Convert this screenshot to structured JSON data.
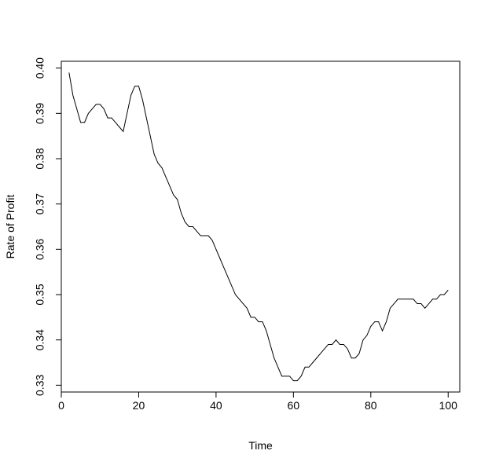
{
  "chart_data": {
    "type": "line",
    "title": "",
    "xlabel": "Time",
    "ylabel": "Rate of Profit",
    "xlim": [
      0,
      103
    ],
    "ylim": [
      0.3285,
      0.4015
    ],
    "xticks": [
      0,
      20,
      40,
      60,
      80,
      100
    ],
    "xtick_labels": [
      "0",
      "20",
      "40",
      "60",
      "80",
      "100"
    ],
    "yticks": [
      0.33,
      0.34,
      0.35,
      0.36,
      0.37,
      0.38,
      0.39,
      0.4
    ],
    "ytick_labels": [
      "0.33",
      "0.34",
      "0.35",
      "0.36",
      "0.37",
      "0.38",
      "0.39",
      "0.40"
    ],
    "grid": false,
    "legend": "none",
    "line_color": "#000000",
    "series": [
      {
        "x": [
          2,
          3,
          4,
          5,
          6,
          7,
          8,
          9,
          10,
          11,
          12,
          13,
          14,
          15,
          16,
          17,
          18,
          19,
          20,
          21,
          22,
          23,
          24,
          25,
          26,
          27,
          28,
          29,
          30,
          31,
          32,
          33,
          34,
          35,
          36,
          37,
          38,
          39,
          40,
          41,
          42,
          43,
          44,
          45,
          46,
          47,
          48,
          49,
          50,
          51,
          52,
          53,
          54,
          55,
          56,
          57,
          58,
          59,
          60,
          61,
          62,
          63,
          64,
          65,
          66,
          67,
          68,
          69,
          70,
          71,
          72,
          73,
          74,
          75,
          76,
          77,
          78,
          79,
          80,
          81,
          82,
          83,
          84,
          85,
          86,
          87,
          88,
          89,
          90,
          91,
          92,
          93,
          94,
          95,
          96,
          97,
          98,
          99,
          100
        ],
        "values": [
          0.399,
          0.394,
          0.391,
          0.388,
          0.388,
          0.39,
          0.391,
          0.392,
          0.392,
          0.391,
          0.389,
          0.389,
          0.388,
          0.387,
          0.386,
          0.39,
          0.394,
          0.396,
          0.396,
          0.393,
          0.389,
          0.385,
          0.381,
          0.379,
          0.378,
          0.376,
          0.374,
          0.372,
          0.371,
          0.368,
          0.366,
          0.365,
          0.365,
          0.364,
          0.363,
          0.363,
          0.363,
          0.362,
          0.36,
          0.358,
          0.356,
          0.354,
          0.352,
          0.35,
          0.349,
          0.348,
          0.347,
          0.345,
          0.345,
          0.344,
          0.344,
          0.342,
          0.339,
          0.336,
          0.334,
          0.332,
          0.332,
          0.332,
          0.331,
          0.331,
          0.332,
          0.334,
          0.334,
          0.335,
          0.336,
          0.337,
          0.338,
          0.339,
          0.339,
          0.34,
          0.339,
          0.339,
          0.338,
          0.336,
          0.336,
          0.337,
          0.34,
          0.341,
          0.343,
          0.344,
          0.344,
          0.342,
          0.344,
          0.347,
          0.348,
          0.349,
          0.349,
          0.349,
          0.349,
          0.349,
          0.348,
          0.348,
          0.347,
          0.348,
          0.349,
          0.349,
          0.35,
          0.35,
          0.351
        ]
      }
    ]
  }
}
